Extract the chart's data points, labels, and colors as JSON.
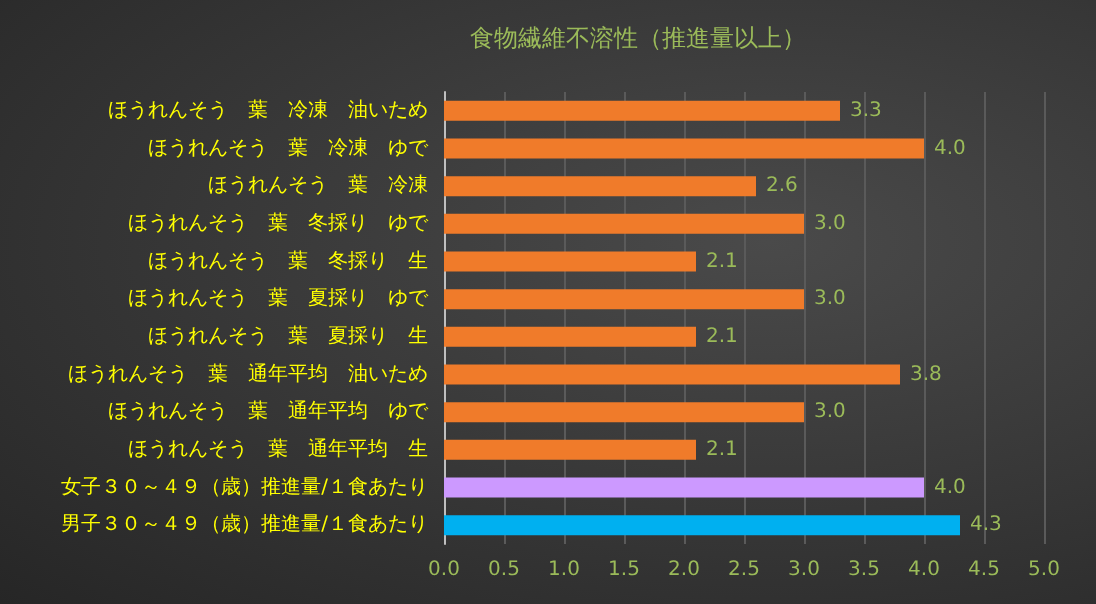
{
  "chart_data": {
    "type": "bar",
    "orientation": "horizontal",
    "title": "食物繊維不溶性（推進量以上）",
    "categories": [
      "ほうれんそう　葉　冷凍　油いため",
      "ほうれんそう　葉　冷凍　ゆで",
      "ほうれんそう　葉　冷凍",
      "ほうれんそう　葉　冬採り　ゆで",
      "ほうれんそう　葉　冬採り　生",
      "ほうれんそう　葉　夏採り　ゆで",
      "ほうれんそう　葉　夏採り　生",
      "ほうれんそう　葉　通年平均　油いため",
      "ほうれんそう　葉　通年平均　ゆで",
      "ほうれんそう　葉　通年平均　生",
      "女子３０～４９（歳）推進量/１食あたり",
      "男子３０～４９（歳）推進量/１食あたり"
    ],
    "values": [
      3.3,
      4.0,
      2.6,
      3.0,
      2.1,
      3.0,
      2.1,
      3.8,
      3.0,
      2.1,
      4.0,
      4.3
    ],
    "value_labels": [
      "3.3",
      "4.0",
      "2.6",
      "3.0",
      "2.1",
      "3.0",
      "2.1",
      "3.8",
      "3.0",
      "2.1",
      "4.0",
      "4.3"
    ],
    "colors": [
      "#f07b2a",
      "#f07b2a",
      "#f07b2a",
      "#f07b2a",
      "#f07b2a",
      "#f07b2a",
      "#f07b2a",
      "#f07b2a",
      "#f07b2a",
      "#f07b2a",
      "#cc99ff",
      "#00b0f0"
    ],
    "xlim": [
      0,
      5
    ],
    "xticks": [
      {
        "value": 0,
        "label": "0.0"
      },
      {
        "value": 0.5,
        "label": "0.5"
      },
      {
        "value": 1,
        "label": "1.0"
      },
      {
        "value": 1.5,
        "label": "1.5"
      },
      {
        "value": 2,
        "label": "2.0"
      },
      {
        "value": 2.5,
        "label": "2.5"
      },
      {
        "value": 3,
        "label": "3.0"
      },
      {
        "value": 3.5,
        "label": "3.5"
      },
      {
        "value": 4,
        "label": "4.0"
      },
      {
        "value": 4.5,
        "label": "4.5"
      },
      {
        "value": 5,
        "label": "5.0"
      }
    ],
    "grid": "x"
  }
}
